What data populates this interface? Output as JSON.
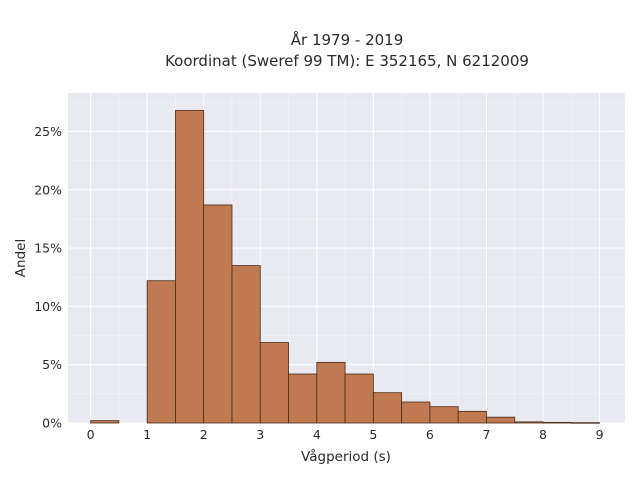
{
  "chart_data": {
    "type": "bar",
    "title_lines": [
      "År 1979 - 2019",
      "Koordinat (Sweref 99 TM): E 352165, N 6212009"
    ],
    "xlabel": "Vågperiod (s)",
    "ylabel": "Andel",
    "bin_width": 0.5,
    "bins": [
      {
        "x0": 0.0,
        "x1": 0.5,
        "value": 0.2
      },
      {
        "x0": 1.0,
        "x1": 1.5,
        "value": 12.2
      },
      {
        "x0": 1.5,
        "x1": 2.0,
        "value": 26.8
      },
      {
        "x0": 2.0,
        "x1": 2.5,
        "value": 18.7
      },
      {
        "x0": 2.5,
        "x1": 3.0,
        "value": 13.5
      },
      {
        "x0": 3.0,
        "x1": 3.5,
        "value": 6.9
      },
      {
        "x0": 3.5,
        "x1": 4.0,
        "value": 4.2
      },
      {
        "x0": 4.0,
        "x1": 4.5,
        "value": 5.2
      },
      {
        "x0": 4.5,
        "x1": 5.0,
        "value": 4.2
      },
      {
        "x0": 5.0,
        "x1": 5.5,
        "value": 2.6
      },
      {
        "x0": 5.5,
        "x1": 6.0,
        "value": 1.8
      },
      {
        "x0": 6.0,
        "x1": 6.5,
        "value": 1.4
      },
      {
        "x0": 6.5,
        "x1": 7.0,
        "value": 1.0
      },
      {
        "x0": 7.0,
        "x1": 7.5,
        "value": 0.5
      },
      {
        "x0": 7.5,
        "x1": 8.0,
        "value": 0.1
      },
      {
        "x0": 8.0,
        "x1": 8.5,
        "value": 0.05
      },
      {
        "x0": 8.5,
        "x1": 9.0,
        "value": 0.03
      }
    ],
    "x_ticks": [
      0,
      1,
      2,
      3,
      4,
      5,
      6,
      7,
      8,
      9
    ],
    "x_tick_labels": [
      "0",
      "1",
      "2",
      "3",
      "4",
      "5",
      "6",
      "7",
      "8",
      "9"
    ],
    "y_ticks": [
      0,
      5,
      10,
      15,
      20,
      25
    ],
    "y_tick_labels": [
      "0%",
      "5%",
      "10%",
      "15%",
      "20%",
      "25%"
    ],
    "xlim": [
      -0.4,
      9.45
    ],
    "ylim": [
      0,
      28.3
    ],
    "grid": true,
    "colors": {
      "bar_fill": "#c07a52",
      "bar_edge": "#4a2a16",
      "plot_background": "#e9e9f2",
      "grid": "#ffffff"
    }
  }
}
